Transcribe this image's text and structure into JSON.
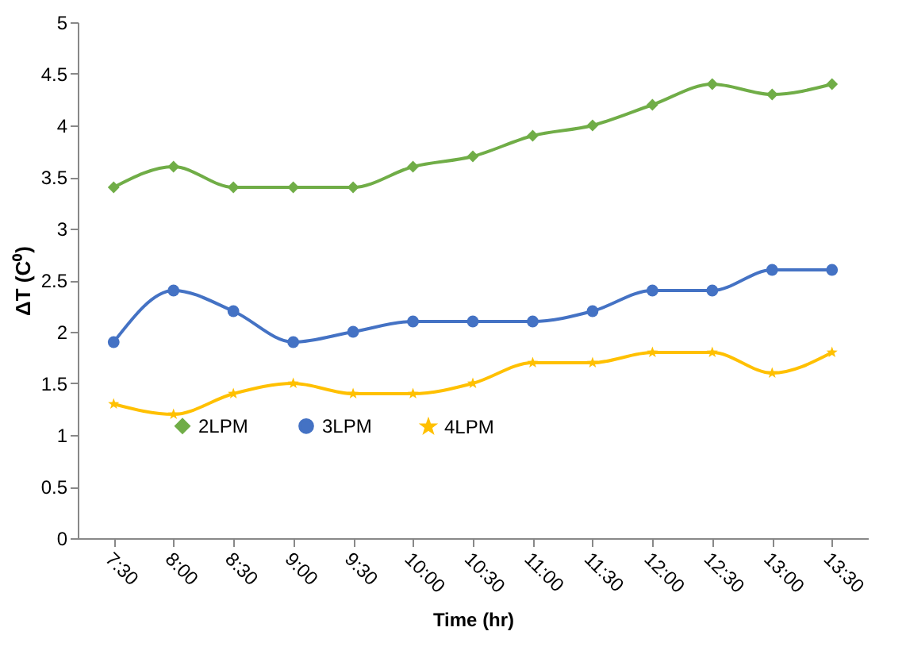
{
  "chart_data": {
    "type": "line",
    "xlabel": "Time (hr)",
    "ylabel": "ΔT (C⁰)",
    "categories": [
      "7:30",
      "8:00",
      "8:30",
      "9:00",
      "9:30",
      "10:00",
      "10:30",
      "11:00",
      "11:30",
      "12:00",
      "12:30",
      "13:00",
      "13:30"
    ],
    "series": [
      {
        "name": "2LPM",
        "color": "#70ad47",
        "marker": "diamond",
        "values": [
          3.4,
          3.6,
          3.4,
          3.4,
          3.4,
          3.6,
          3.7,
          3.9,
          4.0,
          4.2,
          4.4,
          4.3,
          4.4
        ]
      },
      {
        "name": "3LPM",
        "color": "#4472c4",
        "marker": "circle",
        "values": [
          1.9,
          2.4,
          2.2,
          1.9,
          2.0,
          2.1,
          2.1,
          2.1,
          2.2,
          2.4,
          2.4,
          2.6,
          2.6
        ]
      },
      {
        "name": "4LPM",
        "color": "#ffc000",
        "marker": "star",
        "values": [
          1.3,
          1.2,
          1.4,
          1.5,
          1.4,
          1.4,
          1.5,
          1.7,
          1.7,
          1.8,
          1.8,
          1.6,
          1.8
        ]
      }
    ],
    "ylim": [
      0,
      5
    ],
    "yticks": [
      0,
      0.5,
      1,
      1.5,
      2,
      2.5,
      3,
      3.5,
      4,
      4.5,
      5
    ],
    "grid": false,
    "legend": "bottom",
    "line_style": "solid"
  }
}
